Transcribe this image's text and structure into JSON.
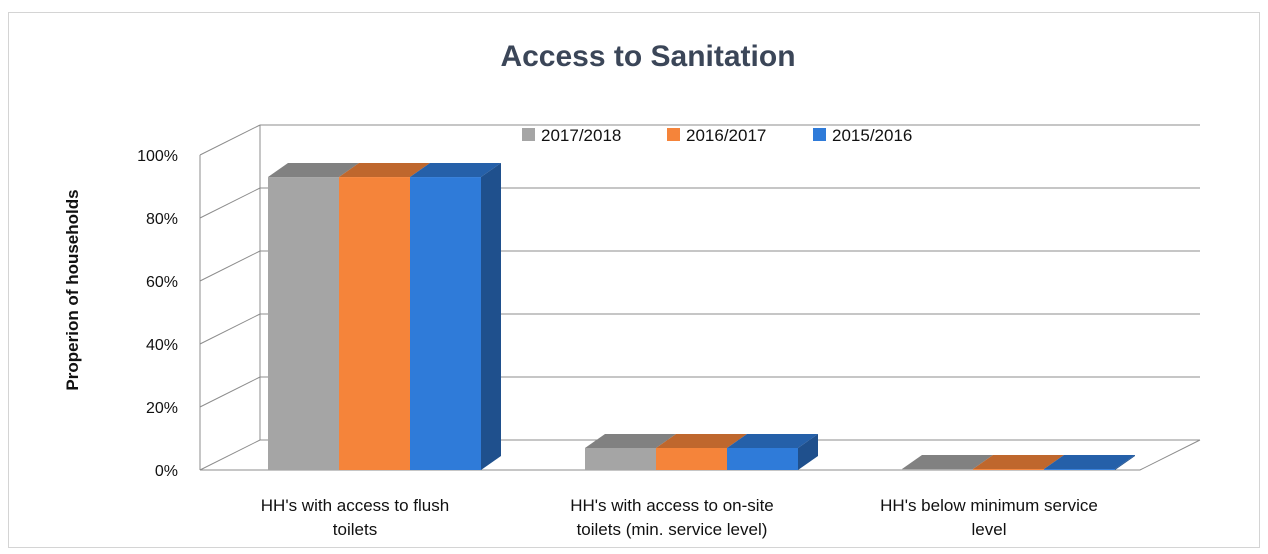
{
  "chart_data": {
    "type": "bar",
    "title": "Access to Sanitation",
    "ylabel": "Properion of households",
    "xlabel": "",
    "ylim": [
      0,
      100
    ],
    "yticks": [
      "0%",
      "20%",
      "40%",
      "60%",
      "80%",
      "100%"
    ],
    "yticks_values": [
      0,
      20,
      40,
      60,
      80,
      100
    ],
    "grid": true,
    "legend_position": "top-center",
    "categories": [
      [
        "HH's with access to flush",
        "toilets"
      ],
      [
        "HH's with access to on-site",
        "toilets (min. service level)"
      ],
      [
        "HH's below minimum service",
        "level"
      ]
    ],
    "series": [
      {
        "name": "2017/2018",
        "values": [
          93,
          7,
          0.3
        ],
        "color": "#a5a5a5"
      },
      {
        "name": "2016/2017",
        "values": [
          93,
          7,
          0.3
        ],
        "color": "#f5843a"
      },
      {
        "name": "2015/2016",
        "values": [
          93,
          7,
          0.3
        ],
        "color": "#2f7bd9"
      }
    ]
  }
}
